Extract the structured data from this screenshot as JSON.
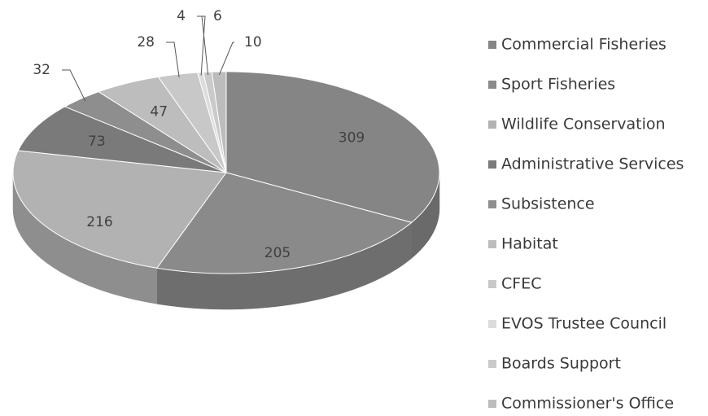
{
  "chart_data": {
    "type": "pie3d",
    "categories": [
      "Commercial Fisheries",
      "Sport Fisheries",
      "Wildlife Conservation",
      "Administrative Services",
      "Subsistence",
      "Habitat",
      "CFEC",
      "EVOS Trustee Council",
      "Boards Support",
      "Commissioner's Office"
    ],
    "values": [
      309,
      205,
      216,
      73,
      32,
      47,
      28,
      4,
      6,
      10
    ],
    "colors": [
      "#858585",
      "#8a8a8a",
      "#b2b2b2",
      "#7a7a7a",
      "#8e8e8e",
      "#bdbdbd",
      "#c8c8c8",
      "#dcdcdc",
      "#cacaca",
      "#bcbcbc"
    ]
  }
}
